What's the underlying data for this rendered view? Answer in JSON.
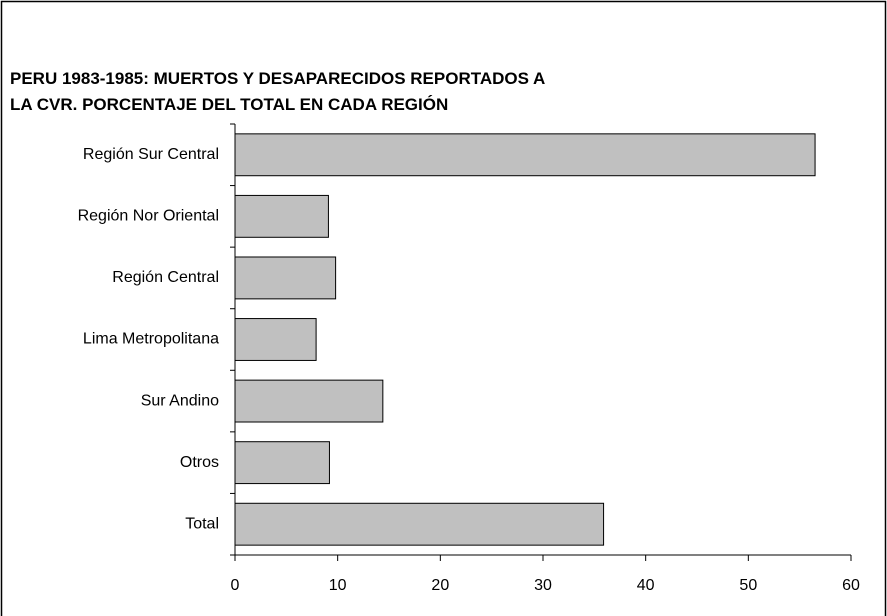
{
  "chart_data": {
    "type": "bar",
    "orientation": "horizontal",
    "title": [
      "PERU 1983-1985: MUERTOS Y DESAPARECIDOS REPORTADOS A",
      "LA CVR. PORCENTAJE DEL TOTAL EN CADA REGIÓN"
    ],
    "categories": [
      "Región Sur Central",
      "Región Nor Oriental",
      "Región Central",
      "Lima Metropolitana",
      "Sur Andino",
      "Otros",
      "Total"
    ],
    "values": [
      56.5,
      9.1,
      9.8,
      7.9,
      14.4,
      9.2,
      35.9
    ],
    "color": "#c0c0c0",
    "xlim": [
      0,
      60
    ],
    "xticks": [
      0,
      10,
      20,
      30,
      40,
      50,
      60
    ],
    "grid": false
  }
}
